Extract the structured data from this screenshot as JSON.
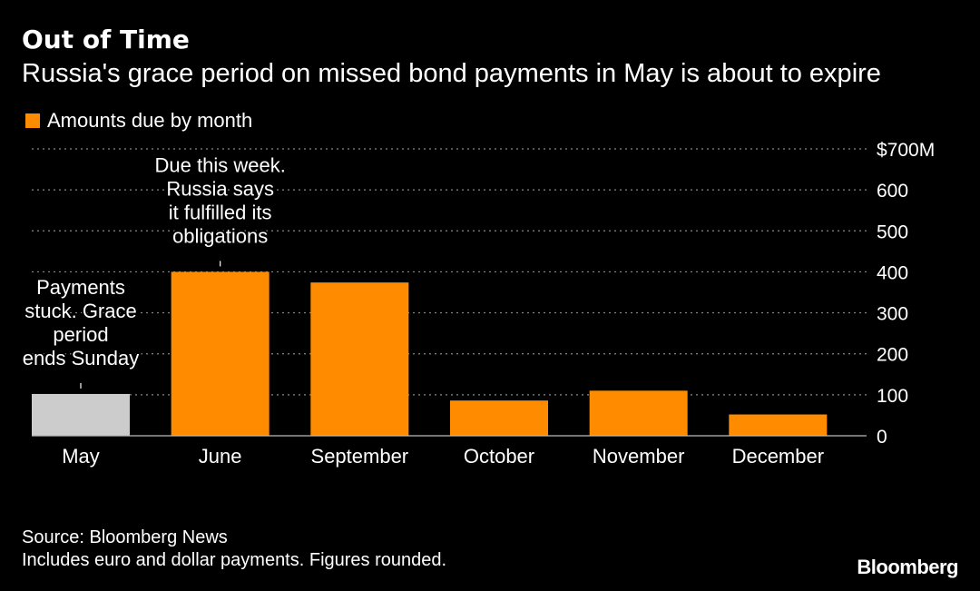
{
  "header": {
    "title": "Out of Time",
    "subtitle": "Russia's grace period on missed bond payments in May is about to expire"
  },
  "legend": {
    "label": "Amounts due by month"
  },
  "footer": {
    "source": "Source: Bloomberg News",
    "note": "Includes euro and dollar payments. Figures rounded."
  },
  "brand": {
    "name": "Bloomberg"
  },
  "colors": {
    "background": "#000000",
    "bar": "#ff8c00",
    "highlight_bar": "#cccccc",
    "grid": "#888888"
  },
  "chart_data": {
    "type": "bar",
    "categories": [
      "May",
      "June",
      "September",
      "October",
      "November",
      "December"
    ],
    "values": [
      102,
      400,
      374,
      86,
      110,
      52
    ],
    "highlight_index": 0,
    "ylim": [
      0,
      700
    ],
    "yticks": [
      0,
      100,
      200,
      300,
      400,
      500,
      600,
      700
    ],
    "ytick_labels": [
      "0",
      "100",
      "200",
      "300",
      "400",
      "500",
      "600",
      "$700M"
    ],
    "grid": true,
    "grid_style": "dotted",
    "legend_position": "top-left",
    "annotations": [
      {
        "category": "May",
        "lines": [
          "Payments",
          "stuck. Grace",
          "period",
          "ends Sunday"
        ]
      },
      {
        "category": "June",
        "lines": [
          "Due this week.",
          "Russia says",
          "it fulfilled its",
          "obligations"
        ]
      }
    ]
  }
}
